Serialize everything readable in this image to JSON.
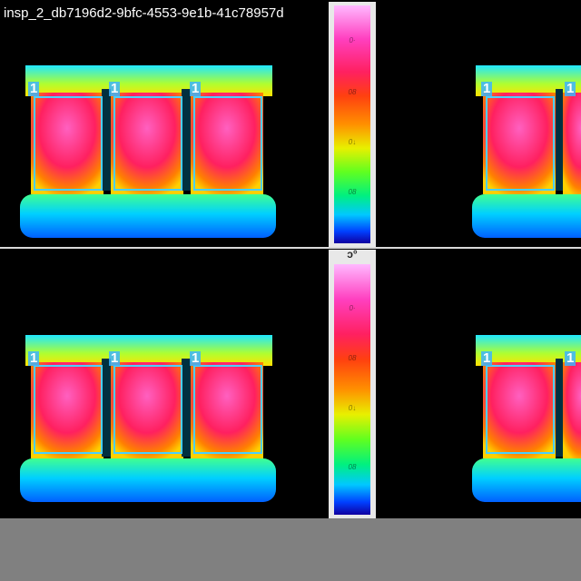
{
  "image_id_label": "insp_2_db7196d2-9bfc-4553-9e1b-41c78957d",
  "scale_top": {
    "unit": "",
    "ticks": [
      "0·",
      "08",
      "0↓",
      "08"
    ]
  },
  "scale_bottom": {
    "unit": "ɔ°",
    "ticks": [
      "0·",
      "08",
      "0↓",
      "08"
    ]
  },
  "roi_labels": [
    "1",
    "1",
    "1",
    "1",
    "1"
  ],
  "colors": {
    "hot": "#ff2a7a",
    "warm": "#ffb400",
    "cool": "#30ff80",
    "cold": "#0090ff",
    "roi_outline": "#4ad0ff",
    "separator": "#d9d9d9",
    "footer": "#808080"
  }
}
